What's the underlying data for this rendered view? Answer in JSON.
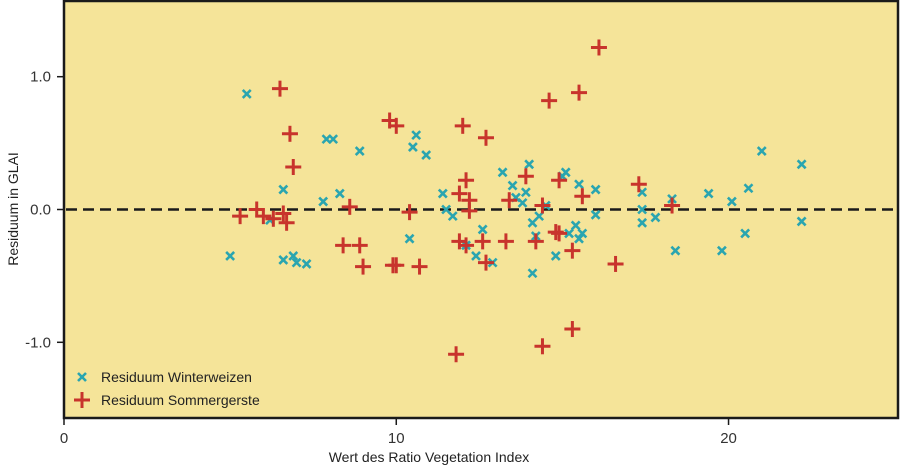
{
  "chart_data": {
    "type": "scatter",
    "title": "",
    "xlabel": "Wert des Ratio Vegetation Index",
    "ylabel": "Residuum in GLAI",
    "xlim": [
      0,
      25.1
    ],
    "ylim": [
      -1.57,
      1.57
    ],
    "xticks": [
      0,
      10,
      20
    ],
    "xtick_labels": [
      "0",
      "10",
      "20"
    ],
    "yticks": [
      1.0,
      0.0,
      -1.0
    ],
    "ytick_labels": [
      "1.0",
      "0.0",
      "-1.0"
    ],
    "grid": false,
    "legend_position": "bottom-left",
    "reference_line": {
      "y": 0,
      "style": "dashed"
    },
    "background_color": "#f5e499",
    "series": [
      {
        "name": "Residuum Winterweizen",
        "marker": "x",
        "color": "#2aa5b0",
        "points": [
          [
            5.5,
            0.87
          ],
          [
            5.0,
            -0.35
          ],
          [
            6.2,
            -0.08
          ],
          [
            6.6,
            0.15
          ],
          [
            6.6,
            -0.38
          ],
          [
            6.9,
            -0.35
          ],
          [
            7.0,
            -0.4
          ],
          [
            7.3,
            -0.41
          ],
          [
            7.8,
            0.06
          ],
          [
            7.9,
            0.53
          ],
          [
            8.1,
            0.53
          ],
          [
            8.3,
            0.12
          ],
          [
            8.9,
            0.44
          ],
          [
            10.4,
            -0.22
          ],
          [
            10.5,
            0.47
          ],
          [
            10.6,
            0.56
          ],
          [
            10.9,
            0.41
          ],
          [
            11.4,
            0.12
          ],
          [
            11.5,
            0.0
          ],
          [
            11.7,
            -0.05
          ],
          [
            12.1,
            -0.27
          ],
          [
            12.4,
            -0.35
          ],
          [
            12.6,
            -0.15
          ],
          [
            12.9,
            -0.4
          ],
          [
            13.2,
            0.28
          ],
          [
            13.5,
            0.18
          ],
          [
            13.6,
            0.09
          ],
          [
            13.8,
            0.05
          ],
          [
            13.9,
            0.13
          ],
          [
            14.0,
            0.34
          ],
          [
            14.1,
            -0.1
          ],
          [
            14.1,
            -0.48
          ],
          [
            14.2,
            -0.2
          ],
          [
            14.3,
            -0.05
          ],
          [
            14.5,
            0.03
          ],
          [
            14.8,
            -0.35
          ],
          [
            15.0,
            0.25
          ],
          [
            15.1,
            0.28
          ],
          [
            15.2,
            -0.18
          ],
          [
            15.4,
            -0.12
          ],
          [
            15.5,
            0.19
          ],
          [
            15.5,
            -0.22
          ],
          [
            15.6,
            -0.18
          ],
          [
            16.0,
            0.15
          ],
          [
            16.0,
            -0.04
          ],
          [
            17.4,
            0.13
          ],
          [
            17.4,
            -0.1
          ],
          [
            17.4,
            0.0
          ],
          [
            17.8,
            -0.06
          ],
          [
            18.3,
            0.08
          ],
          [
            18.4,
            -0.31
          ],
          [
            19.4,
            0.12
          ],
          [
            19.8,
            -0.31
          ],
          [
            20.1,
            0.06
          ],
          [
            20.5,
            -0.18
          ],
          [
            20.6,
            0.16
          ],
          [
            21.0,
            0.44
          ],
          [
            22.2,
            0.34
          ],
          [
            22.2,
            -0.09
          ]
        ]
      },
      {
        "name": "Residuum Sommergerste",
        "marker": "+",
        "color": "#c8342c",
        "points": [
          [
            5.3,
            -0.05
          ],
          [
            5.8,
            0.0
          ],
          [
            6.0,
            -0.05
          ],
          [
            6.3,
            -0.07
          ],
          [
            6.5,
            0.91
          ],
          [
            6.6,
            -0.03
          ],
          [
            6.7,
            -0.1
          ],
          [
            6.8,
            0.57
          ],
          [
            6.9,
            0.32
          ],
          [
            8.4,
            -0.27
          ],
          [
            8.6,
            0.02
          ],
          [
            8.9,
            -0.27
          ],
          [
            9.0,
            -0.43
          ],
          [
            9.8,
            0.67
          ],
          [
            10.0,
            0.63
          ],
          [
            10.0,
            -0.42
          ],
          [
            9.9,
            -0.42
          ],
          [
            10.4,
            -0.02
          ],
          [
            10.7,
            -0.43
          ],
          [
            11.8,
            -1.09
          ],
          [
            11.9,
            -0.24
          ],
          [
            11.9,
            0.12
          ],
          [
            12.0,
            0.63
          ],
          [
            12.1,
            -0.27
          ],
          [
            12.1,
            0.22
          ],
          [
            12.2,
            -0.01
          ],
          [
            12.2,
            0.07
          ],
          [
            12.6,
            -0.24
          ],
          [
            12.7,
            -0.4
          ],
          [
            12.7,
            0.54
          ],
          [
            13.3,
            -0.24
          ],
          [
            13.4,
            0.07
          ],
          [
            13.9,
            0.25
          ],
          [
            14.2,
            -0.24
          ],
          [
            14.4,
            -1.03
          ],
          [
            14.4,
            0.03
          ],
          [
            14.6,
            0.82
          ],
          [
            14.8,
            -0.17
          ],
          [
            14.9,
            -0.18
          ],
          [
            14.9,
            0.22
          ],
          [
            15.3,
            -0.31
          ],
          [
            15.3,
            -0.9
          ],
          [
            15.5,
            0.88
          ],
          [
            15.6,
            0.1
          ],
          [
            16.1,
            1.22
          ],
          [
            16.6,
            -0.41
          ],
          [
            17.3,
            0.19
          ],
          [
            18.3,
            0.03
          ]
        ]
      }
    ]
  }
}
